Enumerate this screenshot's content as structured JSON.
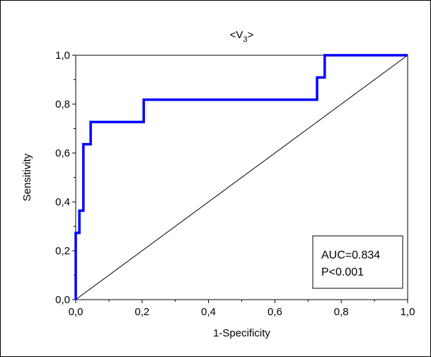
{
  "chart_data": {
    "type": "line",
    "title": {
      "prefix": "<V",
      "subscript": "3",
      "suffix": ">"
    },
    "xlabel": "1-Specificity",
    "ylabel": "Sensitivity",
    "xlim": [
      0,
      1
    ],
    "ylim": [
      0,
      1
    ],
    "x_ticks": [
      0,
      0.2,
      0.4,
      0.6,
      0.8,
      1.0
    ],
    "y_ticks": [
      0,
      0.2,
      0.4,
      0.6,
      0.8,
      1.0
    ],
    "x_tick_labels": [
      "0,0",
      "0,2",
      "0,4",
      "0,6",
      "0,8",
      "1,0"
    ],
    "y_tick_labels": [
      "0,0",
      "0,2",
      "0,4",
      "0,6",
      "0,8",
      "1,0"
    ],
    "grid": false,
    "series": [
      {
        "color": "#0000ff",
        "step": true,
        "points": [
          [
            0.0,
            0.0
          ],
          [
            0.0,
            0.273
          ],
          [
            0.011,
            0.273
          ],
          [
            0.011,
            0.364
          ],
          [
            0.023,
            0.364
          ],
          [
            0.023,
            0.636
          ],
          [
            0.045,
            0.636
          ],
          [
            0.045,
            0.727
          ],
          [
            0.205,
            0.727
          ],
          [
            0.205,
            0.818
          ],
          [
            0.727,
            0.818
          ],
          [
            0.727,
            0.909
          ],
          [
            0.75,
            0.909
          ],
          [
            0.75,
            1.0
          ],
          [
            1.0,
            1.0
          ]
        ]
      },
      {
        "color": "#000000",
        "reference": true,
        "points": [
          [
            0,
            0
          ],
          [
            1,
            1
          ]
        ]
      }
    ],
    "annotations": [
      "AUC=0.834",
      "P<0.001"
    ]
  }
}
